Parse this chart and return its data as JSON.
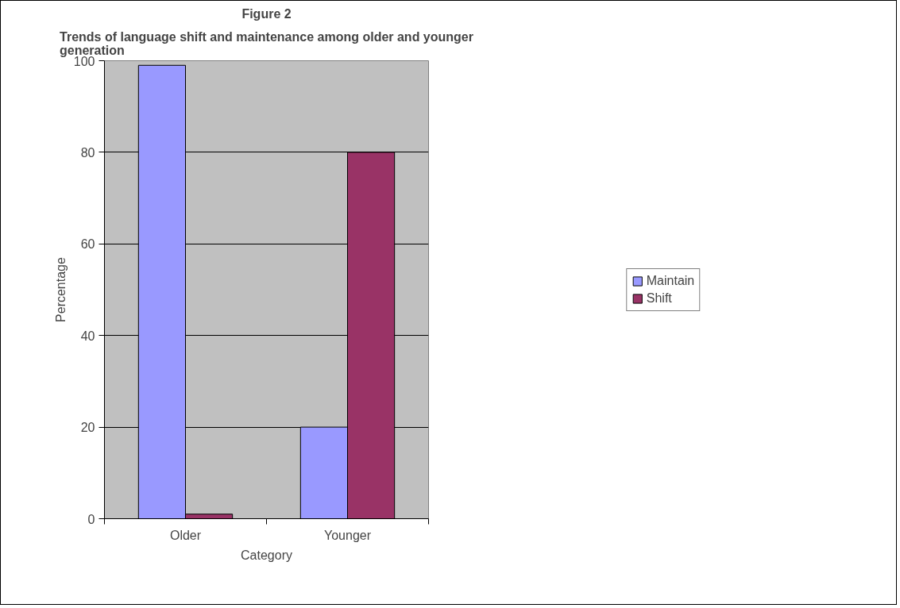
{
  "chart_data": {
    "type": "bar",
    "title": "Figure 2",
    "subtitle": "Trends of language shift and maintenance among older and younger generation",
    "xlabel": "Category",
    "ylabel": "Percentage",
    "categories": [
      "Older",
      "Younger"
    ],
    "series": [
      {
        "name": "Maintain",
        "color": "#9999ff",
        "values": [
          99,
          20
        ]
      },
      {
        "name": "Shift",
        "color": "#993366",
        "values": [
          1,
          80
        ]
      }
    ],
    "ylim": [
      0,
      100
    ],
    "yticks": [
      0,
      20,
      40,
      60,
      80,
      100
    ],
    "grid": "y",
    "legend": "right"
  }
}
